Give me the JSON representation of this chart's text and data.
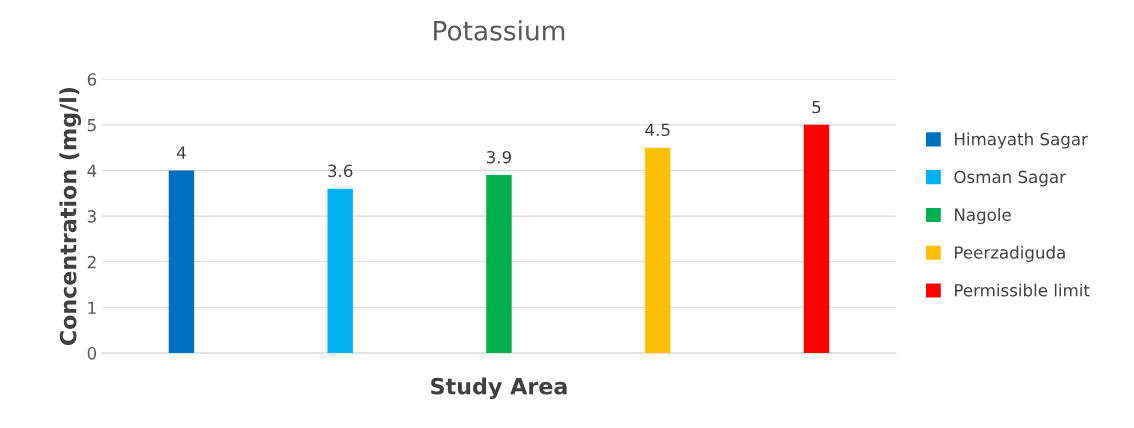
{
  "chart_data": {
    "type": "bar",
    "title": "Potassium",
    "xlabel": "Study Area",
    "ylabel": "Concentration (mg/l)",
    "categories": [
      null,
      null,
      null,
      null,
      null
    ],
    "series": [
      {
        "name": "Himayath Sagar",
        "color": "#0070c0",
        "values": [
          4,
          null,
          null,
          null,
          null
        ]
      },
      {
        "name": "Osman Sagar",
        "color": "#00b0f0",
        "values": [
          null,
          3.6,
          null,
          null,
          null
        ]
      },
      {
        "name": "Nagole",
        "color": "#00b050",
        "values": [
          null,
          null,
          3.9,
          null,
          null
        ]
      },
      {
        "name": "Peerzadiguda",
        "color": "#ffc000",
        "values": [
          null,
          null,
          null,
          4.5,
          null
        ]
      },
      {
        "name": "Permissible limit",
        "color": "#ff0000",
        "values": [
          null,
          null,
          null,
          null,
          5
        ]
      }
    ],
    "ylim": [
      0,
      6
    ],
    "yticks": [
      0,
      1,
      2,
      3,
      4,
      5,
      6
    ],
    "grid": "y",
    "legend": "right",
    "data_labels": true
  }
}
